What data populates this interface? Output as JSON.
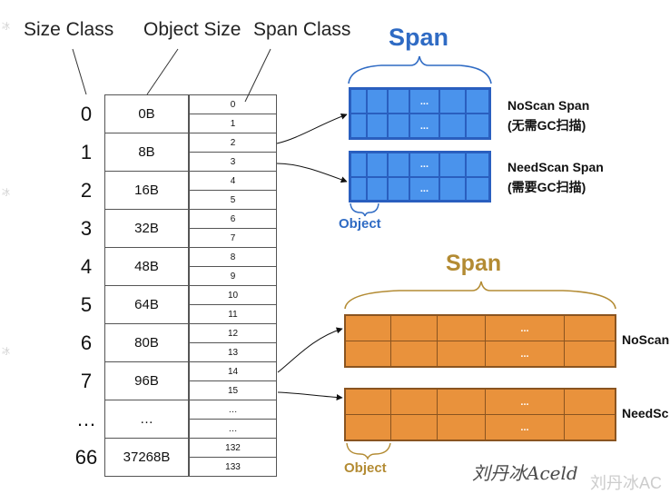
{
  "headers": {
    "size_class": "Size Class",
    "object_size": "Object Size",
    "span_class": "Span Class"
  },
  "rows": [
    {
      "size_class": "0",
      "object_size": "0B",
      "span_classes": [
        "0",
        "1"
      ]
    },
    {
      "size_class": "1",
      "object_size": "8B",
      "span_classes": [
        "2",
        "3"
      ]
    },
    {
      "size_class": "2",
      "object_size": "16B",
      "span_classes": [
        "4",
        "5"
      ]
    },
    {
      "size_class": "3",
      "object_size": "32B",
      "span_classes": [
        "6",
        "7"
      ]
    },
    {
      "size_class": "4",
      "object_size": "48B",
      "span_classes": [
        "8",
        "9"
      ]
    },
    {
      "size_class": "5",
      "object_size": "64B",
      "span_classes": [
        "10",
        "11"
      ]
    },
    {
      "size_class": "6",
      "object_size": "80B",
      "span_classes": [
        "12",
        "13"
      ]
    },
    {
      "size_class": "7",
      "object_size": "96B",
      "span_classes": [
        "14",
        "15"
      ]
    },
    {
      "size_class": "…",
      "object_size": "…",
      "span_classes": [
        "…",
        "…"
      ]
    },
    {
      "size_class": "66",
      "object_size": "37268B",
      "span_classes": [
        "132",
        "133"
      ]
    }
  ],
  "span_group_top": {
    "title": "Span",
    "title_color": "#2f6bc4",
    "cell_color": "#4a93ec",
    "ellipsis": "...",
    "noscan_label": "NoScan Span",
    "noscan_sub": "(无需GC扫描)",
    "needscan_label": "NeedScan Span",
    "needscan_sub": "(需要GC扫描)",
    "object_label": "Object"
  },
  "span_group_bottom": {
    "title": "Span",
    "title_color": "#b38b33",
    "cell_color": "#e9923c",
    "ellipsis": "...",
    "noscan_label": "NoScan",
    "needscan_label": "NeedSc",
    "object_label": "Object"
  },
  "watermarks": {
    "side_fragment": "冰",
    "signature": "刘丹冰Aceld",
    "corner": "刘丹冰AC"
  }
}
